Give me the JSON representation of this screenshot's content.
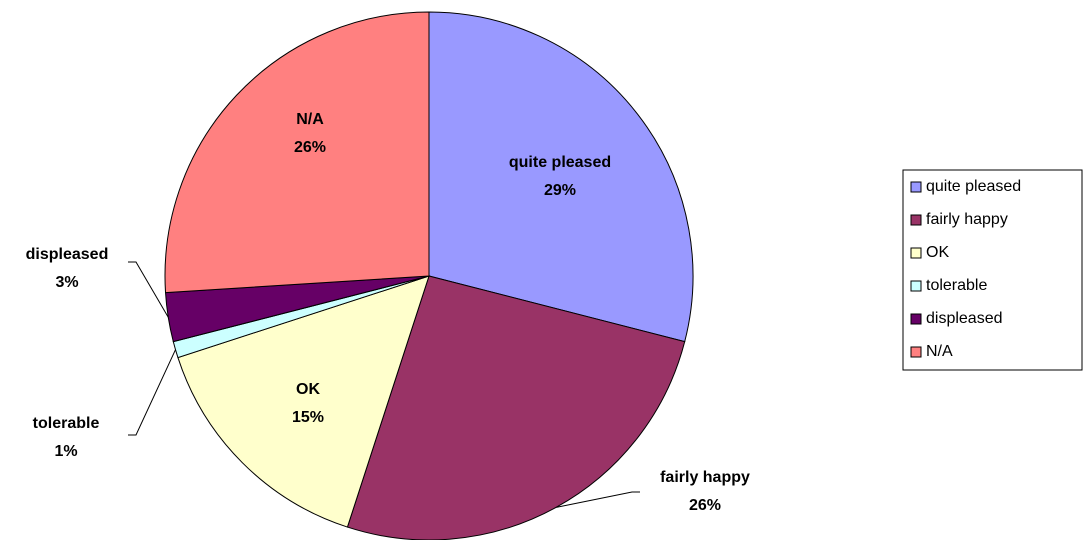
{
  "chart_data": {
    "type": "pie",
    "categories": [
      "quite pleased",
      "fairly happy",
      "OK",
      "tolerable",
      "displeased",
      "N/A"
    ],
    "values": [
      29,
      26,
      15,
      1,
      3,
      26
    ],
    "value_labels": [
      "29%",
      "26%",
      "15%",
      "1%",
      "3%",
      "26%"
    ],
    "colors": [
      "#9999ff",
      "#993366",
      "#ffffcc",
      "#ccffff",
      "#660066",
      "#ff8080"
    ],
    "legend": "right"
  }
}
